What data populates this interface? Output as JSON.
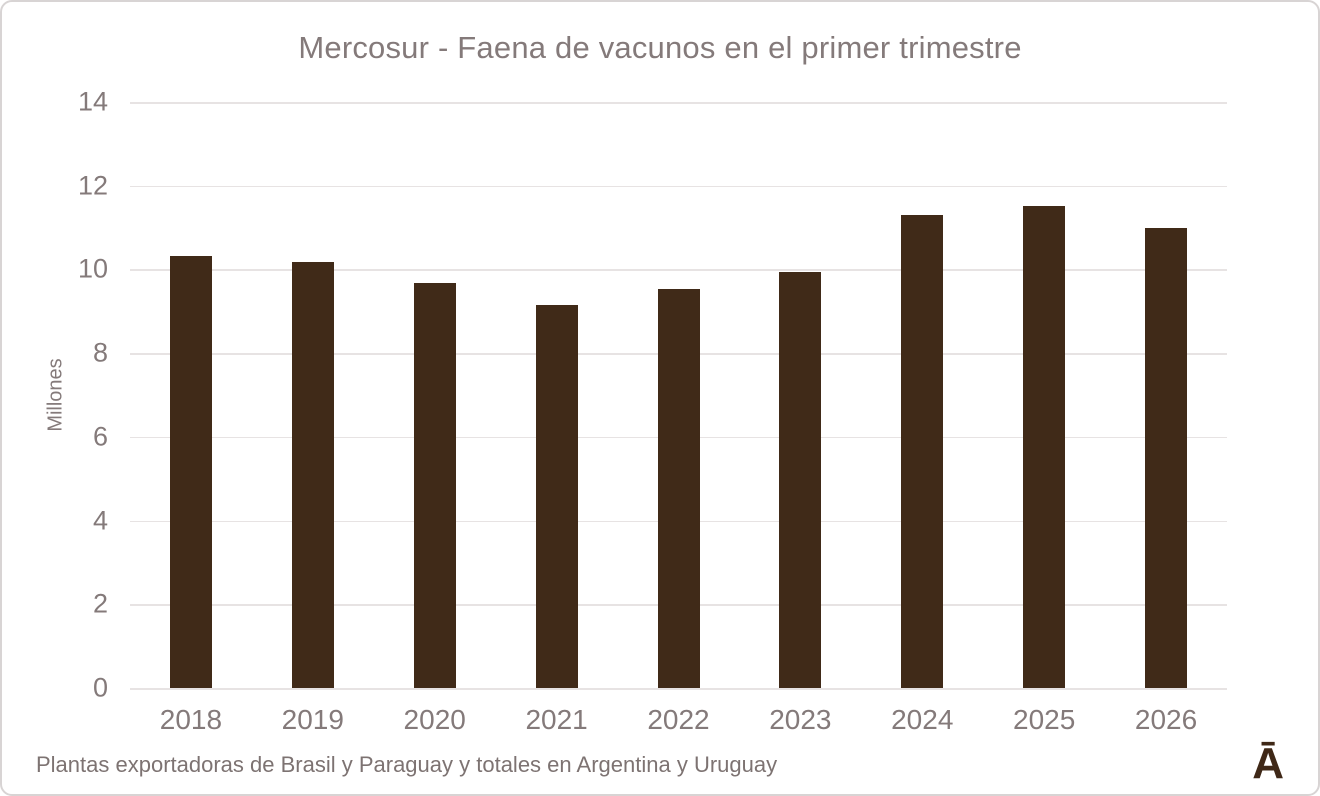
{
  "logo": {
    "text": "Ā",
    "color": "#3f2817"
  },
  "colors": {
    "bar": "#402a18",
    "gridline": "#e7e3e3",
    "axis_text": "#847a7a",
    "note_text": "#7d7372",
    "card_border": "#d8d4d4",
    "background": "#ffffff"
  },
  "chart_data": {
    "type": "bar",
    "title": "Mercosur - Faena de vacunos en el primer trimestre",
    "categories": [
      "2018",
      "2019",
      "2020",
      "2021",
      "2022",
      "2023",
      "2024",
      "2025",
      "2026"
    ],
    "values": [
      10.33,
      10.17,
      9.68,
      9.15,
      9.53,
      9.95,
      11.3,
      11.52,
      11.0
    ],
    "xlabel": "",
    "ylabel": "Millones",
    "ylim": [
      0,
      14
    ],
    "y_ticks": [
      0,
      2,
      4,
      6,
      8,
      10,
      12,
      14
    ],
    "grid": "horizontal",
    "legend": "none",
    "bar_color": "#402a18",
    "annotation": "Plantas exportadoras de Brasil y Paraguay y totales en Argentina y Uruguay"
  }
}
